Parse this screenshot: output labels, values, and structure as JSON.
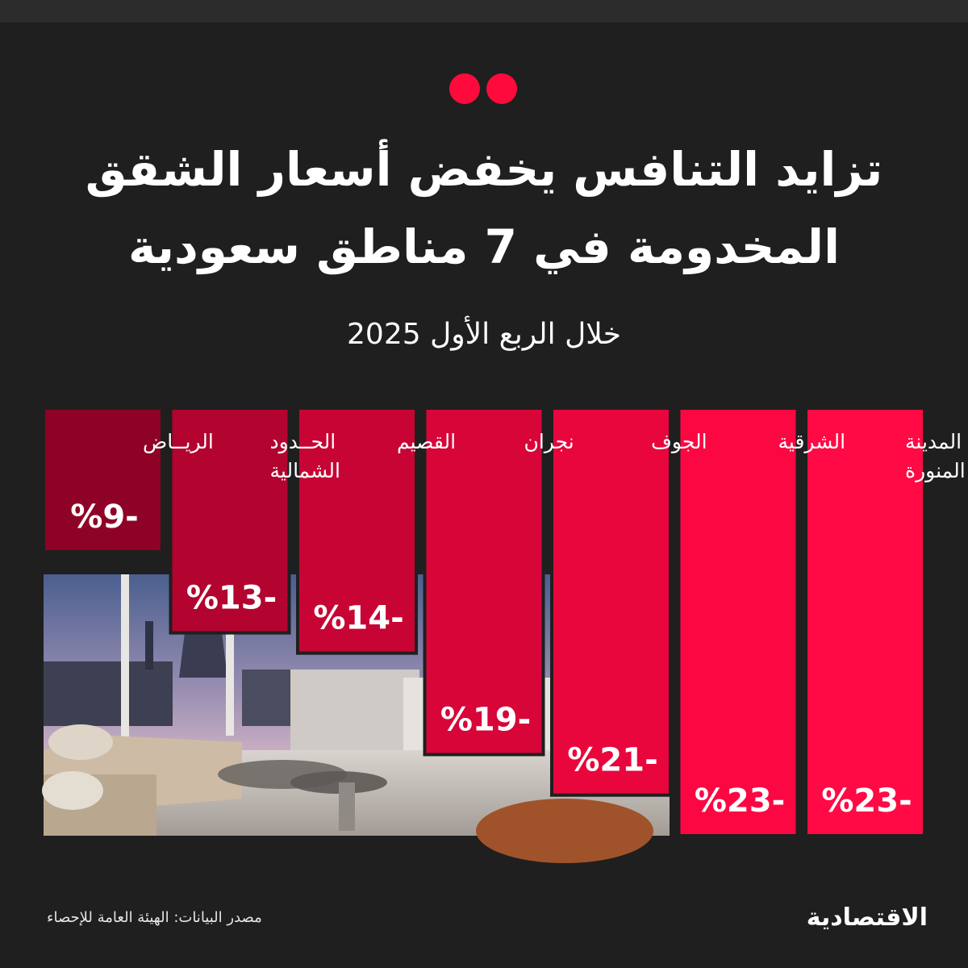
{
  "title_line1": "تزايد التنافس يخفض أسعار الشقق",
  "title_line2": "المخدومة في 7 مناطق سعودية",
  "subtitle": "خلال الربع الأول 2025",
  "source": "مصدر البيانات: الهيئة العامة للإحصاء",
  "logo_text": "الاقتصادية",
  "colors": {
    "background": "#1f1f1f",
    "accent_dot": "#ff0a3c",
    "bar_scale": [
      "#ff0a45",
      "#fb0843",
      "#e8063c",
      "#d80539",
      "#c70434",
      "#b3032f",
      "#8f0227"
    ]
  },
  "chart_data": {
    "type": "bar",
    "orientation": "vertical",
    "direction": "rtl",
    "title": "تزايد التنافس يخفض أسعار الشقق المخدومة في 7 مناطق سعودية",
    "subtitle": "خلال الربع الأول 2025",
    "categories": [
      [
        "المدينة",
        "المنورة"
      ],
      [
        "الشرقية"
      ],
      [
        "الجوف"
      ],
      [
        "نجران"
      ],
      [
        "القصيم"
      ],
      [
        "الحــدود",
        "الشمالية"
      ],
      [
        "الريــاض"
      ]
    ],
    "values": [
      -23,
      -23,
      -21,
      -19,
      -14,
      -13,
      -9
    ],
    "value_labels": [
      "%23-",
      "%23-",
      "%21-",
      "%19-",
      "%14-",
      "%13-",
      "%9-"
    ],
    "value_unit": "%",
    "ylim": [
      0,
      -23
    ],
    "grid": false,
    "legend": "none"
  }
}
